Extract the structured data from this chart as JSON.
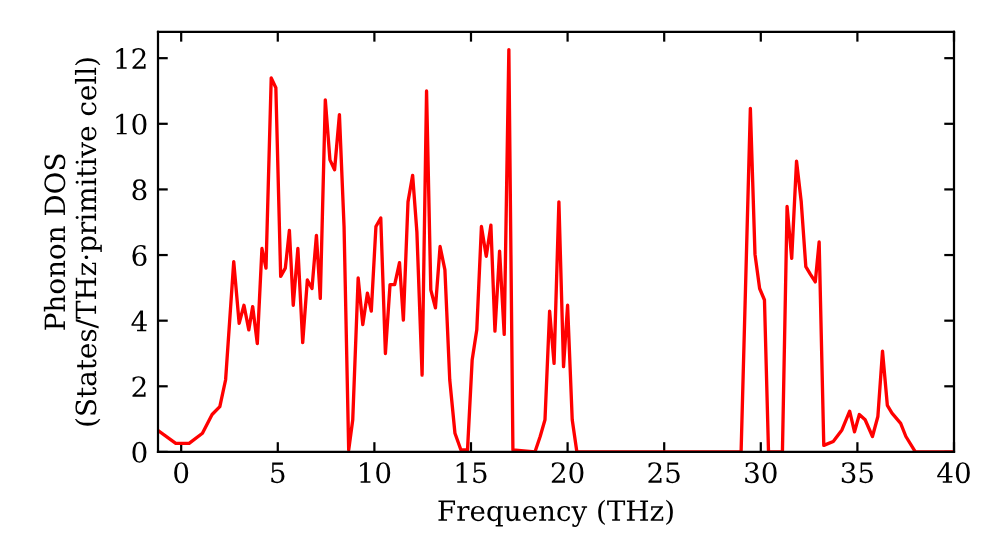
{
  "chart_data": {
    "type": "line",
    "xlabel": "Frequency (THz)",
    "ylabel": "Phonon DOS\n(States/THz·primitive cell)",
    "xlim": [
      -1.2,
      40
    ],
    "ylim": [
      0,
      12.8
    ],
    "xticks": [
      0,
      5,
      10,
      15,
      20,
      25,
      30,
      35,
      40
    ],
    "yticks": [
      0,
      2,
      4,
      6,
      8,
      10,
      12
    ],
    "grid": false,
    "legend": false,
    "series": [
      {
        "color": "#ff0000",
        "x": [
          -1.14,
          -0.28,
          0.41,
          1.1,
          1.6,
          2.0,
          2.3,
          2.72,
          3.0,
          3.25,
          3.5,
          3.7,
          3.94,
          4.18,
          4.39,
          4.66,
          4.9,
          5.15,
          5.39,
          5.6,
          5.8,
          6.04,
          6.29,
          6.53,
          6.77,
          7.0,
          7.2,
          7.46,
          7.7,
          7.94,
          8.19,
          8.43,
          8.67,
          8.88,
          9.16,
          9.4,
          9.64,
          9.84,
          10.08,
          10.33,
          10.57,
          10.81,
          11.05,
          11.3,
          11.5,
          11.74,
          11.98,
          12.2,
          12.47,
          12.7,
          12.92,
          13.16,
          13.4,
          13.65,
          13.9,
          14.17,
          14.48,
          14.82,
          15.06,
          15.3,
          15.54,
          15.79,
          16.03,
          16.24,
          16.48,
          16.72,
          16.96,
          17.17,
          18.31,
          18.58,
          18.83,
          19.07,
          19.3,
          19.55,
          19.79,
          20.0,
          20.24,
          20.48,
          28.98,
          29.46,
          29.7,
          29.94,
          30.19,
          30.4,
          31.12,
          31.36,
          31.6,
          31.85,
          32.09,
          32.33,
          32.57,
          32.82,
          33.02,
          33.26,
          33.75,
          34.2,
          34.6,
          34.85,
          35.1,
          35.4,
          35.78,
          36.06,
          36.3,
          36.55,
          36.79,
          37.24,
          37.51,
          38.0,
          40.0
        ],
        "values": [
          0.63,
          0.26,
          0.26,
          0.57,
          1.14,
          1.38,
          2.2,
          5.8,
          3.92,
          4.47,
          3.72,
          4.43,
          3.3,
          6.2,
          5.6,
          11.4,
          11.1,
          5.35,
          5.6,
          6.75,
          4.47,
          6.2,
          3.33,
          5.24,
          4.98,
          6.6,
          4.68,
          10.73,
          8.9,
          8.6,
          10.28,
          6.87,
          0.06,
          0.98,
          5.3,
          3.88,
          4.84,
          4.29,
          6.87,
          7.13,
          3.0,
          5.1,
          5.1,
          5.77,
          4.02,
          7.62,
          8.43,
          6.7,
          2.34,
          11.0,
          4.94,
          4.39,
          6.26,
          5.55,
          2.2,
          0.57,
          0.06,
          0.06,
          2.8,
          3.72,
          6.87,
          5.96,
          6.91,
          3.68,
          6.12,
          3.58,
          12.26,
          0.06,
          0,
          0.47,
          0.98,
          4.29,
          2.7,
          7.62,
          2.6,
          4.47,
          0.98,
          0,
          0,
          10.47,
          6.02,
          4.98,
          4.63,
          0,
          0,
          7.48,
          5.9,
          8.86,
          7.64,
          5.65,
          5.41,
          5.18,
          6.4,
          0.2,
          0.32,
          0.67,
          1.24,
          0.61,
          1.14,
          0.98,
          0.47,
          1.08,
          3.07,
          1.42,
          1.18,
          0.87,
          0.47,
          0,
          0
        ]
      }
    ]
  }
}
